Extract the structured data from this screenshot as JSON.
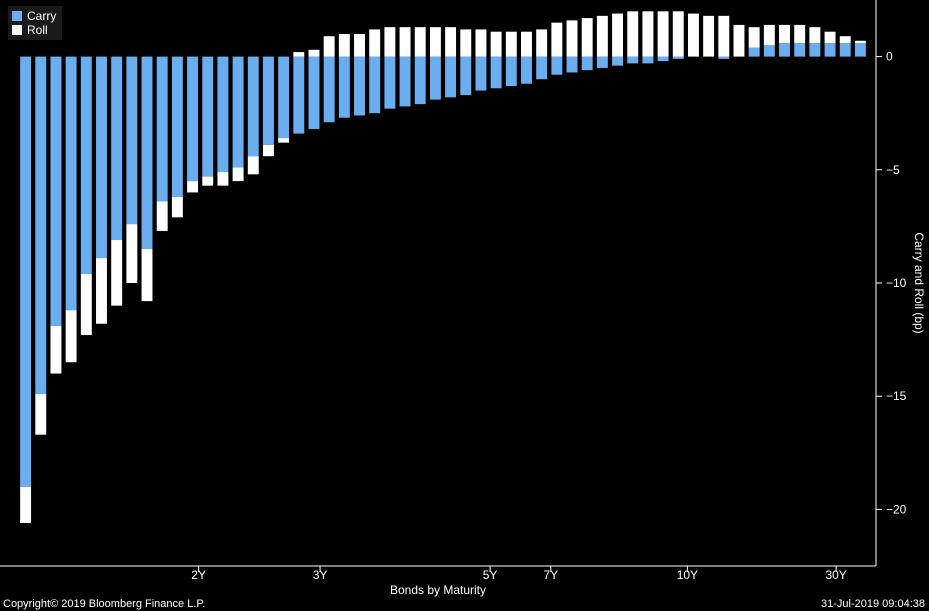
{
  "chart_data": {
    "type": "bar",
    "stacked": true,
    "xlabel": "Bonds by Maturity",
    "ylabel": "Carry and Roll (bp)",
    "ylim": [
      -22.5,
      2.5
    ],
    "y_ticks": [
      0,
      -5,
      -10,
      -15,
      -20
    ],
    "x_tick_labels": [
      "2Y",
      "3Y",
      "5Y",
      "7Y",
      "10Y",
      "30Y"
    ],
    "x_tick_bar_positions": [
      11.4,
      19.4,
      30.6,
      34.6,
      43.6,
      53.4
    ],
    "legend": {
      "position": "top-left"
    },
    "grid": false,
    "series": [
      {
        "name": "Carry",
        "color": "#6aaeef",
        "values": [
          -19.0,
          -14.9,
          -11.9,
          -11.2,
          -9.6,
          -8.9,
          -8.1,
          -7.4,
          -8.5,
          -6.4,
          -6.2,
          -5.5,
          -5.3,
          -5.1,
          -4.9,
          -4.4,
          -3.9,
          -3.6,
          -3.4,
          -3.2,
          -2.9,
          -2.7,
          -2.6,
          -2.5,
          -2.3,
          -2.2,
          -2.1,
          -1.9,
          -1.8,
          -1.7,
          -1.5,
          -1.4,
          -1.3,
          -1.2,
          -1.0,
          -0.8,
          -0.7,
          -0.6,
          -0.5,
          -0.4,
          -0.3,
          -0.3,
          -0.2,
          -0.1,
          0.0,
          0.0,
          -0.1,
          0.0,
          0.4,
          0.5,
          0.6,
          0.6,
          0.6,
          0.6,
          0.6,
          0.6
        ]
      },
      {
        "name": "Roll",
        "color": "#ffffff",
        "values": [
          -1.6,
          -1.8,
          -2.1,
          -2.3,
          -2.7,
          -2.9,
          -2.9,
          -2.6,
          -2.3,
          -1.3,
          -0.9,
          -0.5,
          -0.4,
          -0.6,
          -0.6,
          -0.8,
          -0.5,
          -0.2,
          0.2,
          0.3,
          0.9,
          1.0,
          1.0,
          1.2,
          1.3,
          1.3,
          1.3,
          1.3,
          1.3,
          1.2,
          1.2,
          1.1,
          1.1,
          1.1,
          1.2,
          1.5,
          1.6,
          1.7,
          1.8,
          1.9,
          2.0,
          2.0,
          2.0,
          2.0,
          1.9,
          1.8,
          1.8,
          1.4,
          0.9,
          0.9,
          0.8,
          0.8,
          0.7,
          0.5,
          0.3,
          0.1
        ]
      }
    ]
  },
  "footer": {
    "copyright": "Copyright© 2019 Bloomberg Finance L.P.",
    "timestamp": "31-Jul-2019 09:04:38"
  }
}
